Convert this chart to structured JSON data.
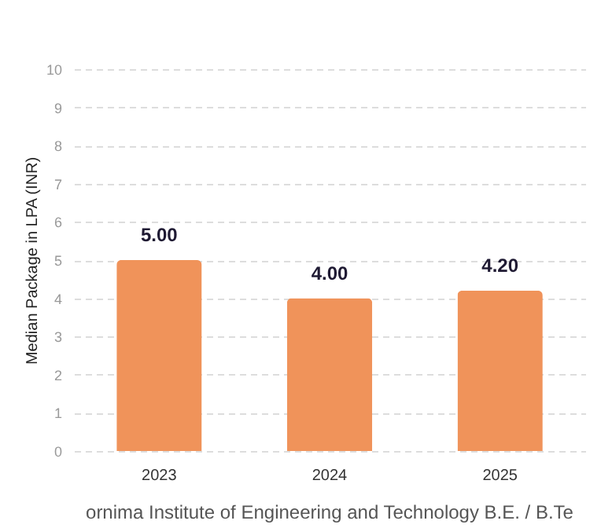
{
  "chart_data": {
    "type": "bar",
    "title": "ornima Institute of Engineering and Technology B.E. / B.Te",
    "ylabel": "Median Package in LPA (INR)",
    "categories": [
      "2023",
      "2024",
      "2025"
    ],
    "values": [
      5,
      4,
      4.2
    ],
    "value_labels": [
      "5.00",
      "4.00",
      "4.20"
    ],
    "color": "#f0935a",
    "ylim": [
      0,
      10
    ],
    "yticks": [
      0,
      1,
      2,
      3,
      4,
      5,
      6,
      7,
      8,
      9,
      10
    ],
    "grid": "y"
  }
}
